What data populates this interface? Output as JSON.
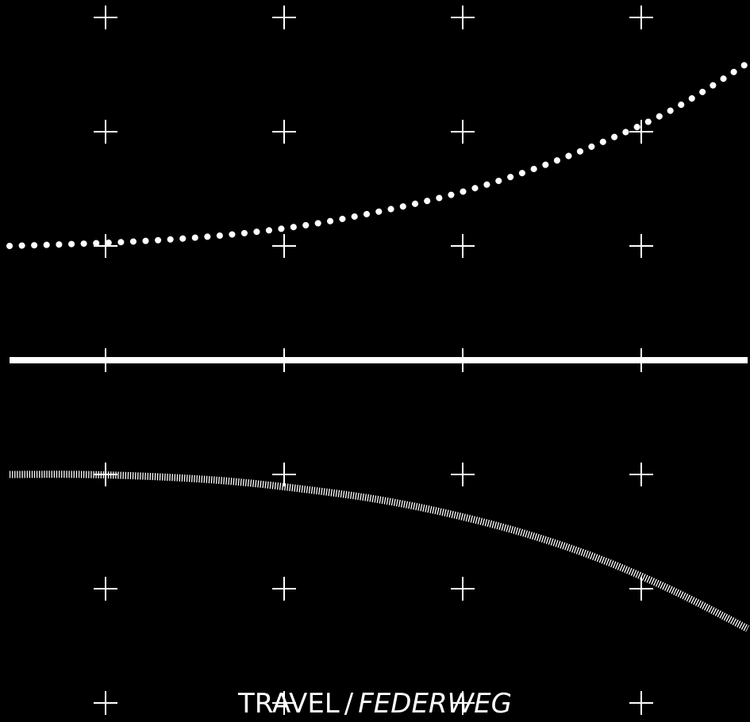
{
  "chart_data": {
    "type": "line",
    "xlabel": "TRAVEL",
    "xlabel_alt": "FEDERWEG",
    "xlabel_separator": "/",
    "grid": "crosshair-markers",
    "background": "#000000",
    "foreground": "#ffffff",
    "series": [
      {
        "style": "dotted",
        "x": [
          0,
          1,
          2,
          3,
          4,
          5,
          6,
          7,
          8,
          9,
          10
        ],
        "values": [
          1.0,
          1.02,
          1.05,
          1.1,
          1.18,
          1.3,
          1.45,
          1.65,
          1.9,
          2.2,
          2.6
        ]
      },
      {
        "style": "solid",
        "x": [
          0,
          10
        ],
        "values": [
          0,
          0
        ]
      },
      {
        "style": "hatched",
        "x": [
          0,
          1,
          2,
          3,
          4,
          5,
          6,
          7,
          8,
          9,
          10
        ],
        "values": [
          -1.0,
          -1.0,
          -1.02,
          -1.06,
          -1.13,
          -1.22,
          -1.35,
          -1.52,
          -1.74,
          -2.02,
          -2.35
        ]
      }
    ]
  }
}
